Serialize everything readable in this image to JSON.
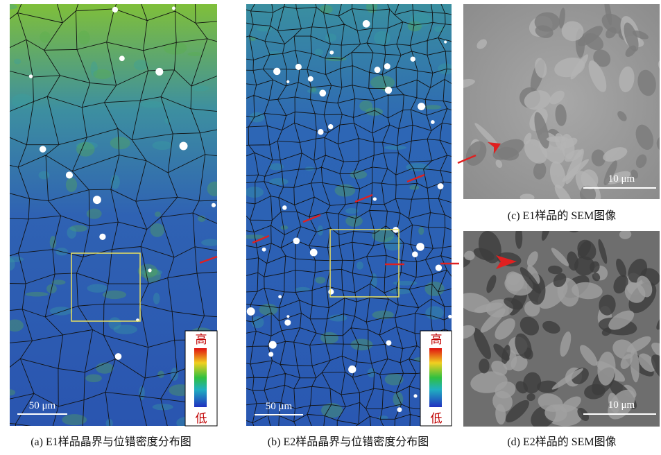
{
  "panels": [
    {
      "caption": "(a)  E1样品晶界与位错密度分布图",
      "scale_bar": "50 μm",
      "colorbar_high": "高",
      "colorbar_low": "低"
    },
    {
      "caption": "(b) E2样品晶界与位错密度分布图",
      "scale_bar": "50 μm",
      "colorbar_high": "高",
      "colorbar_low": "低"
    },
    {
      "caption": "(c)  E1样品的 SEM图像",
      "scale_bar": "10 μm"
    },
    {
      "caption": "(d)  E2样品的 SEM图像",
      "scale_bar": "10 μm"
    }
  ]
}
